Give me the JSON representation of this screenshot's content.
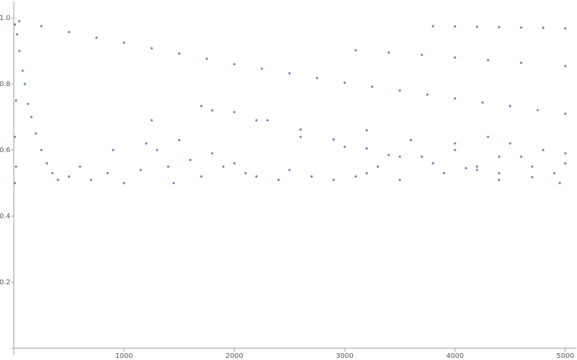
{
  "chart_data": {
    "type": "scatter",
    "color": "#5e81b5",
    "x": [
      50,
      250,
      500,
      750,
      1000,
      1250,
      1500,
      1750,
      2000,
      2250,
      2500,
      2750,
      3000,
      3250,
      3500,
      3750,
      4000,
      4250,
      4500,
      4750,
      5000,
      3800,
      4000,
      4200,
      4400,
      4600,
      4800,
      5000,
      3100,
      3400,
      3700,
      4000,
      4300,
      4600,
      5000,
      1700,
      2000,
      2300,
      2600,
      2900,
      3200,
      3500,
      3800,
      4100,
      4400,
      4700,
      1800,
      2200,
      2600,
      3000,
      3400,
      3800,
      4200,
      3200,
      3600,
      4000,
      4400,
      5000,
      10,
      30,
      50,
      80,
      100,
      130,
      160,
      200,
      250,
      300,
      350,
      400,
      20,
      10,
      20,
      10,
      500,
      600,
      700,
      850,
      900,
      1000,
      1150,
      1200,
      1250,
      1300,
      1400,
      1450,
      1500,
      1600,
      1700,
      1800,
      1900,
      2000,
      2100,
      2200,
      2400,
      2500,
      2700,
      2900,
      3100,
      3200,
      3300,
      3500,
      3700,
      3900,
      4000,
      4200,
      4300,
      4500,
      4600,
      4700,
      4800,
      4900,
      5000,
      4950,
      4400
    ],
    "values": [
      0.99,
      0.975,
      0.957,
      0.94,
      0.925,
      0.908,
      0.892,
      0.876,
      0.86,
      0.846,
      0.832,
      0.818,
      0.804,
      0.792,
      0.78,
      0.768,
      0.756,
      0.744,
      0.733,
      0.721,
      0.71,
      0.975,
      0.974,
      0.973,
      0.972,
      0.971,
      0.97,
      0.968,
      0.902,
      0.895,
      0.888,
      0.88,
      0.872,
      0.864,
      0.854,
      0.733,
      0.715,
      0.69,
      0.662,
      0.632,
      0.605,
      0.58,
      0.56,
      0.545,
      0.53,
      0.518,
      0.72,
      0.69,
      0.64,
      0.61,
      0.585,
      0.56,
      0.54,
      0.66,
      0.63,
      0.6,
      0.58,
      0.56,
      0.98,
      0.95,
      0.9,
      0.84,
      0.8,
      0.74,
      0.7,
      0.65,
      0.6,
      0.56,
      0.53,
      0.51,
      0.75,
      0.64,
      0.55,
      0.5,
      0.52,
      0.55,
      0.51,
      0.53,
      0.6,
      0.5,
      0.54,
      0.62,
      0.69,
      0.6,
      0.55,
      0.5,
      0.63,
      0.57,
      0.52,
      0.59,
      0.55,
      0.56,
      0.53,
      0.52,
      0.51,
      0.54,
      0.52,
      0.51,
      0.52,
      0.53,
      0.55,
      0.51,
      0.58,
      0.53,
      0.62,
      0.55,
      0.64,
      0.62,
      0.58,
      0.55,
      0.6,
      0.53,
      0.59,
      0.5,
      0.51
    ],
    "xlim": [
      0,
      5100
    ],
    "ylim": [
      0,
      1.05
    ],
    "xticks": [
      1000,
      2000,
      3000,
      4000,
      5000
    ],
    "yticks": [
      0.2,
      0.4,
      0.6,
      0.8,
      {
        "value": 1,
        "label": "1.0"
      }
    ]
  }
}
